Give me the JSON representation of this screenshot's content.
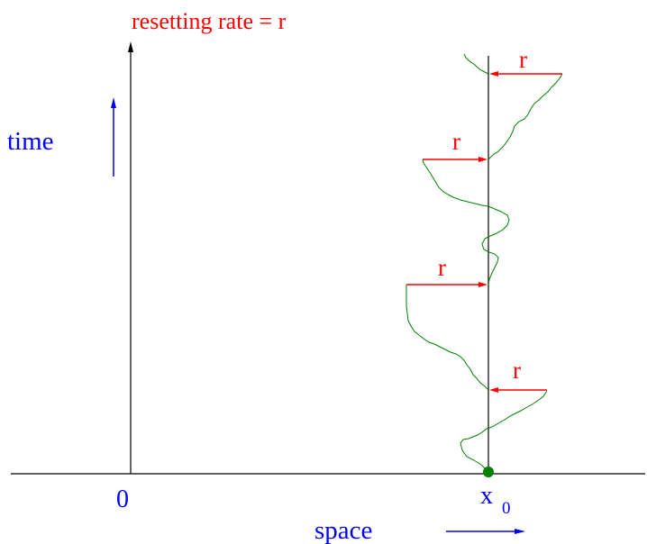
{
  "title": "resetting rate = r",
  "time_label": "time",
  "space_label": "space",
  "origin_label": "0",
  "x0_label_main": "x",
  "x0_label_sub": "0",
  "reset_labels": [
    "r",
    "r",
    "r",
    "r"
  ],
  "colors": {
    "title": "#ff0000",
    "axis_labels": "#0000ff",
    "reset_arrows": "#ff0000",
    "trajectory": "#008000",
    "start_point": "#008000",
    "axes": "#000000"
  }
}
